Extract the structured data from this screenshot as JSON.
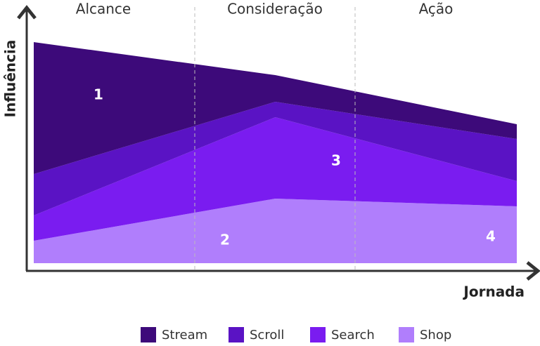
{
  "chart_data": {
    "type": "stacked-area",
    "stages": [
      "Alcance",
      "Consideração",
      "Ação"
    ],
    "y_label": "Influência",
    "x_label": "Jornada",
    "categories": [
      null,
      null,
      null
    ],
    "ylim": [
      0,
      320
    ],
    "series": [
      {
        "name": "Shop",
        "color": "#b07efc",
        "values": [
          32,
          92,
          81
        ]
      },
      {
        "name": "Search",
        "color": "#7a1cf0",
        "values": [
          36,
          116,
          36
        ]
      },
      {
        "name": "Scroll",
        "color": "#5a13c4",
        "values": [
          59,
          22,
          60
        ]
      },
      {
        "name": "Stream",
        "color": "#3d0a7a",
        "values": [
          188,
          38,
          21
        ]
      }
    ],
    "annotations": [
      "1",
      "2",
      "3",
      "4"
    ],
    "legend_order": [
      3,
      2,
      1,
      0
    ]
  }
}
